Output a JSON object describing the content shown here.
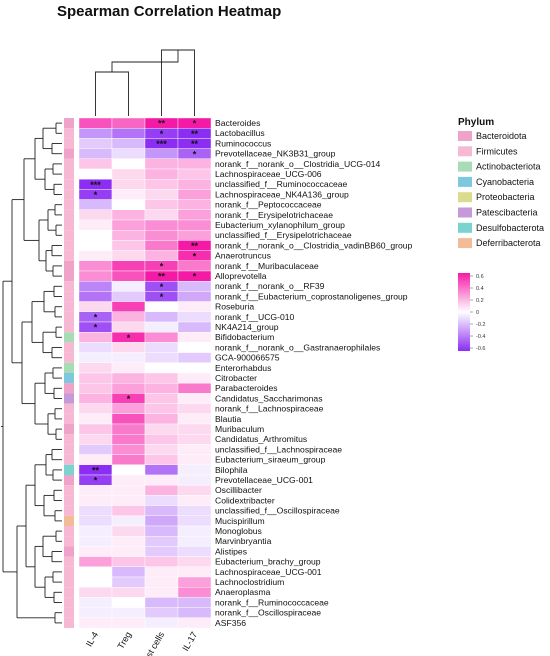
{
  "chart_data": {
    "type": "heatmap",
    "title": "Spearman Correlation Heatmap",
    "columns": [
      "IL-4",
      "Treg",
      "Mast cells",
      "IL-17"
    ],
    "rows": [
      "Bacteroides",
      "Lactobacillus",
      "Ruminococcus",
      "Prevotellaceae_NK3B31_group",
      "norank_f__norank_o__Clostridia_UCG-014",
      "Lachnospiraceae_UCG-006",
      "unclassified_f__Ruminococcaceae",
      "Lachnospiraceae_NK4A136_group",
      "norank_f__Peptococcaceae",
      "norank_f__Erysipelotrichaceae",
      "Eubacterium_xylanophilum_group",
      "unclassified_f__Erysipelotrichaceae",
      "norank_f__norank_o__Clostridia_vadinBB60_group",
      "Anaerotruncus",
      "norank_f__Muribaculaceae",
      "Alloprevotella",
      "norank_f__norank_o__RF39",
      "norank_f__Eubacterium_coprostanoligenes_group",
      "Roseburia",
      "norank_f__UCG-010",
      "NK4A214_group",
      "Bifidobacterium",
      "norank_f__norank_o__Gastranaerophilales",
      "GCA-900066575",
      "Enterorhabdus",
      "Citrobacter",
      "Parabacteroides",
      "Candidatus_Saccharimonas",
      "norank_f__Lachnospiraceae",
      "Blautia",
      "Muribaculum",
      "Candidatus_Arthromitus",
      "unclassified_f__Lachnospiraceae",
      "Eubacterium_siraeum_group",
      "Bilophila",
      "Prevotellaceae_UCG-001",
      "Oscillibacter",
      "Colidextribacter",
      "unclassified_f__Oscillospiraceae",
      "Mucispirillum",
      "Monoglobus",
      "Marvinbryantia",
      "Alistipes",
      "Eubacterium_brachy_group",
      "Lachnospiraceae_UCG-001",
      "Lachnoclostridium",
      "Anaeroplasma",
      "norank_f__Ruminococcaceae",
      "norank_f__Oscillospiraceae",
      "ASF356"
    ],
    "values": [
      [
        0.45,
        0.4,
        0.65,
        0.6
      ],
      [
        -0.3,
        -0.4,
        -0.55,
        -0.65
      ],
      [
        -0.15,
        -0.2,
        -0.75,
        -0.6
      ],
      [
        -0.2,
        -0.1,
        -0.3,
        -0.45
      ],
      [
        0.15,
        0.0,
        0.2,
        0.2
      ],
      [
        0.0,
        0.1,
        0.2,
        0.15
      ],
      [
        -0.7,
        0.1,
        0.15,
        0.2
      ],
      [
        -0.55,
        0.05,
        0.1,
        0.25
      ],
      [
        -0.2,
        0.0,
        0.15,
        0.2
      ],
      [
        0.1,
        0.2,
        0.1,
        0.25
      ],
      [
        0.05,
        0.25,
        0.3,
        0.3
      ],
      [
        0.0,
        0.2,
        0.3,
        0.25
      ],
      [
        0.0,
        0.15,
        0.35,
        0.6
      ],
      [
        0.05,
        0.1,
        0.2,
        0.55
      ],
      [
        0.3,
        0.5,
        0.5,
        0.35
      ],
      [
        0.3,
        0.45,
        0.75,
        0.6
      ],
      [
        -0.35,
        -0.05,
        -0.5,
        -0.2
      ],
      [
        -0.4,
        -0.15,
        -0.5,
        -0.25
      ],
      [
        0.1,
        0.5,
        0.0,
        0.05
      ],
      [
        -0.45,
        0.2,
        -0.2,
        -0.1
      ],
      [
        -0.5,
        0.1,
        -0.05,
        -0.2
      ],
      [
        0.2,
        0.55,
        0.3,
        0.05
      ],
      [
        -0.1,
        0.1,
        -0.1,
        0.0
      ],
      [
        -0.05,
        -0.05,
        -0.1,
        -0.15
      ],
      [
        0.1,
        0.05,
        0.0,
        0.0
      ],
      [
        0.15,
        0.2,
        0.15,
        0.05
      ],
      [
        0.15,
        0.25,
        0.2,
        0.35
      ],
      [
        0.2,
        0.5,
        0.15,
        0.05
      ],
      [
        0.1,
        0.25,
        0.15,
        0.1
      ],
      [
        0.05,
        0.45,
        0.2,
        0.05
      ],
      [
        0.15,
        0.35,
        0.1,
        0.1
      ],
      [
        0.1,
        0.35,
        0.15,
        0.1
      ],
      [
        -0.15,
        0.3,
        0.1,
        0.05
      ],
      [
        0.05,
        0.35,
        0.15,
        0.05
      ],
      [
        -0.6,
        0.0,
        -0.4,
        -0.05
      ],
      [
        -0.55,
        0.05,
        0.05,
        -0.05
      ],
      [
        0.05,
        0.05,
        0.2,
        0.1
      ],
      [
        0.05,
        0.05,
        -0.1,
        0.05
      ],
      [
        -0.1,
        0.15,
        -0.2,
        -0.1
      ],
      [
        -0.1,
        -0.05,
        -0.25,
        -0.1
      ],
      [
        -0.05,
        0.1,
        -0.2,
        -0.05
      ],
      [
        -0.05,
        0.05,
        -0.15,
        -0.05
      ],
      [
        0.05,
        0.05,
        -0.15,
        -0.1
      ],
      [
        0.25,
        0.15,
        0.15,
        0.1
      ],
      [
        0.0,
        -0.2,
        0.05,
        0.05
      ],
      [
        0.0,
        -0.15,
        0.05,
        0.25
      ],
      [
        0.1,
        0.1,
        0.05,
        0.3
      ],
      [
        -0.05,
        0.0,
        -0.2,
        -0.2
      ],
      [
        -0.05,
        -0.05,
        -0.15,
        -0.2
      ],
      [
        0.05,
        0.05,
        -0.05,
        0.05
      ]
    ],
    "significance": [
      [
        "",
        "",
        "**",
        "*"
      ],
      [
        "",
        "",
        "*",
        "**"
      ],
      [
        "",
        "",
        "***",
        "**"
      ],
      [
        "",
        "",
        "",
        "*"
      ],
      [
        "",
        "",
        "",
        ""
      ],
      [
        "",
        "",
        "",
        ""
      ],
      [
        "***",
        "",
        "",
        ""
      ],
      [
        "*",
        "",
        "",
        ""
      ],
      [
        "",
        "",
        "",
        ""
      ],
      [
        "",
        "",
        "",
        ""
      ],
      [
        "",
        "",
        "",
        ""
      ],
      [
        "",
        "",
        "",
        ""
      ],
      [
        "",
        "",
        "",
        "**"
      ],
      [
        "",
        "",
        "",
        "*"
      ],
      [
        "",
        "",
        "*",
        ""
      ],
      [
        "",
        "",
        "**",
        "*"
      ],
      [
        "",
        "",
        "*",
        ""
      ],
      [
        "",
        "",
        "*",
        ""
      ],
      [
        "",
        "",
        "",
        ""
      ],
      [
        "*",
        "",
        "",
        ""
      ],
      [
        "*",
        "",
        "",
        ""
      ],
      [
        "",
        "*",
        "",
        ""
      ],
      [
        "",
        "",
        "",
        ""
      ],
      [
        "",
        "",
        "",
        ""
      ],
      [
        "",
        "",
        "",
        ""
      ],
      [
        "",
        "",
        "",
        ""
      ],
      [
        "",
        "",
        "",
        ""
      ],
      [
        "",
        "*",
        "",
        ""
      ],
      [
        "",
        "",
        "",
        ""
      ],
      [
        "",
        "",
        "",
        ""
      ],
      [
        "",
        "",
        "",
        ""
      ],
      [
        "",
        "",
        "",
        ""
      ],
      [
        "",
        "",
        "",
        ""
      ],
      [
        "",
        "",
        "",
        ""
      ],
      [
        "**",
        "",
        "",
        ""
      ],
      [
        "*",
        "",
        "",
        ""
      ],
      [
        "",
        "",
        "",
        ""
      ],
      [
        "",
        "",
        "",
        ""
      ],
      [
        "",
        "",
        "",
        ""
      ],
      [
        "",
        "",
        "",
        ""
      ],
      [
        "",
        "",
        "",
        ""
      ],
      [
        "",
        "",
        "",
        ""
      ],
      [
        "",
        "",
        "",
        ""
      ],
      [
        "",
        "",
        "",
        ""
      ],
      [
        "",
        "",
        "",
        ""
      ],
      [
        "",
        "",
        "",
        ""
      ],
      [
        "",
        "",
        "",
        ""
      ],
      [
        "",
        "",
        "",
        ""
      ],
      [
        "",
        "",
        "",
        ""
      ],
      [
        "",
        "",
        "",
        ""
      ]
    ],
    "row_phylum": [
      0,
      1,
      1,
      0,
      1,
      1,
      1,
      1,
      1,
      1,
      1,
      1,
      1,
      1,
      0,
      0,
      1,
      1,
      1,
      1,
      1,
      2,
      1,
      1,
      2,
      3,
      0,
      5,
      1,
      1,
      0,
      1,
      1,
      1,
      6,
      0,
      1,
      1,
      1,
      7,
      1,
      1,
      0,
      1,
      1,
      1,
      1,
      1,
      1,
      1
    ],
    "phylum_legend": {
      "title": "Phylum",
      "items": [
        {
          "name": "Bacteroidota",
          "color": "#f0a3c8"
        },
        {
          "name": "Firmicutes",
          "color": "#f7b8d3"
        },
        {
          "name": "Actinobacteriota",
          "color": "#a8dcb6"
        },
        {
          "name": "Cyanobacteria",
          "color": "#7ec8df"
        },
        {
          "name": "Proteobacteria",
          "color": "#d8dc8c"
        },
        {
          "name": "Patescibacteria",
          "color": "#c49ad8"
        },
        {
          "name": "Desulfobacterota",
          "color": "#79d4cf"
        },
        {
          "name": "Deferribacterota",
          "color": "#f1bc96"
        }
      ]
    },
    "colorbar": {
      "ticks": [
        "0.6",
        "0.4",
        "0.2",
        "0",
        "-0.2",
        "-0.4",
        "-0.6"
      ],
      "range": [
        -0.6,
        0.6
      ],
      "low_color": "#8b2df2",
      "mid_color": "#ffffff",
      "high_color": "#f51aa6"
    }
  }
}
